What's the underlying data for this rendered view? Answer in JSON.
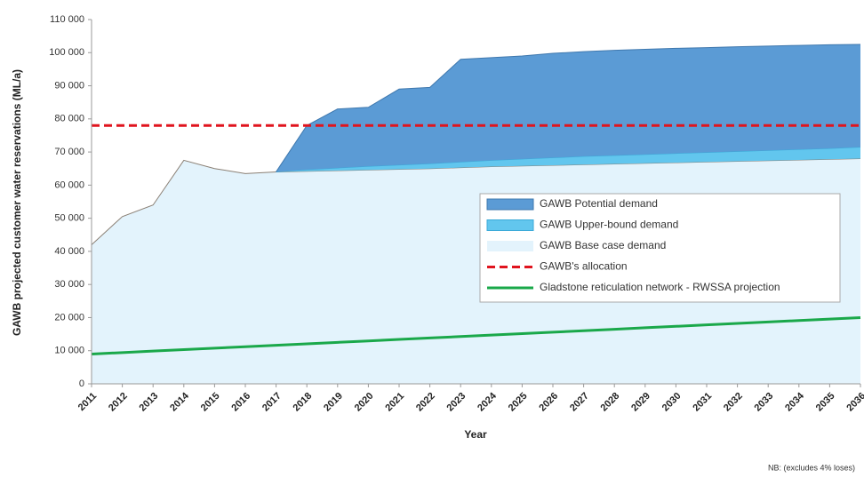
{
  "chart_data": {
    "type": "stacked_area",
    "y_axis_label": "GAWB projected customer water reservations (ML/a)",
    "x_axis_label": "Year",
    "note": "NB: (excludes 4% loses)",
    "categories": [
      "2011",
      "2012",
      "2013",
      "2014",
      "2015",
      "2016",
      "2017",
      "2018",
      "2019",
      "2020",
      "2021",
      "2022",
      "2023",
      "2024",
      "2025",
      "2026",
      "2027",
      "2028",
      "2029",
      "2030",
      "2031",
      "2032",
      "2033",
      "2034",
      "2035",
      "2036"
    ],
    "ylim": [
      0,
      110000
    ],
    "yticks": [
      0,
      {
        "value": 10000,
        "label": "10 000"
      },
      {
        "value": 20000,
        "label": "20 000"
      },
      {
        "value": 30000,
        "label": "30 000"
      },
      {
        "value": 40000,
        "label": "40 000"
      },
      {
        "value": 50000,
        "label": "50 000"
      },
      {
        "value": 60000,
        "label": "60 000"
      },
      {
        "value": 70000,
        "label": "70 000"
      },
      {
        "value": 80000,
        "label": "80 000"
      },
      {
        "value": 90000,
        "label": "90 000"
      },
      {
        "value": 100000,
        "label": "100 000"
      },
      {
        "value": 110000,
        "label": "110 000"
      }
    ],
    "series": [
      {
        "name": "GAWB Potential demand",
        "kind": "area",
        "color": "#5b9bd5",
        "stroke": "#3f78ae",
        "values": [
          null,
          null,
          null,
          null,
          null,
          null,
          0,
          13300,
          17800,
          17800,
          22900,
          23000,
          31000,
          31000,
          31100,
          31500,
          31600,
          31700,
          31700,
          31700,
          31600,
          31600,
          31500,
          31400,
          31300,
          31000
        ]
      },
      {
        "name": "GAWB Upper-bound demand",
        "kind": "area",
        "color": "#62c6ee",
        "stroke": "#3aa9d8",
        "values": [
          null,
          null,
          null,
          null,
          null,
          null,
          0,
          500,
          800,
          1100,
          1300,
          1500,
          1700,
          1900,
          2100,
          2300,
          2500,
          2600,
          2700,
          2800,
          2900,
          3000,
          3100,
          3200,
          3300,
          3500
        ]
      },
      {
        "name": "GAWB Base case demand",
        "kind": "area",
        "color": "#e3f3fc",
        "stroke": "#8a7f74",
        "values": [
          42000,
          50500,
          54000,
          67500,
          65000,
          63500,
          64000,
          64200,
          64400,
          64600,
          64800,
          65000,
          65300,
          65600,
          65800,
          66000,
          66200,
          66400,
          66600,
          66800,
          67000,
          67200,
          67400,
          67600,
          67800,
          68000
        ]
      },
      {
        "name": "GAWB's allocation",
        "kind": "line",
        "dashed": true,
        "color": "#e0141e",
        "values": [
          78000,
          78000,
          78000,
          78000,
          78000,
          78000,
          78000,
          78000,
          78000,
          78000,
          78000,
          78000,
          78000,
          78000,
          78000,
          78000,
          78000,
          78000,
          78000,
          78000,
          78000,
          78000,
          78000,
          78000,
          78000,
          78000
        ]
      },
      {
        "name": "Gladstone reticulation network - RWSSA projection",
        "kind": "line",
        "dashed": false,
        "color": "#1aa84a",
        "values": [
          9000,
          9440,
          9880,
          10320,
          10760,
          11200,
          11640,
          12080,
          12520,
          12960,
          13400,
          13840,
          14280,
          14720,
          15160,
          15600,
          16040,
          16480,
          16920,
          17360,
          17800,
          18240,
          18680,
          19120,
          19560,
          20000
        ]
      }
    ],
    "stack_order": [
      2,
      1,
      0
    ]
  }
}
